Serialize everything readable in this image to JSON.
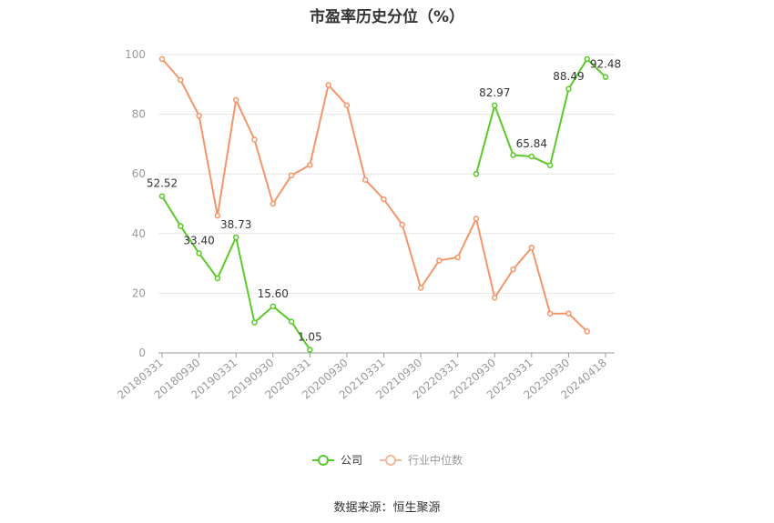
{
  "chart_data": {
    "type": "line",
    "title": "市盈率历史分位（%）",
    "source_note": "数据来源：恒生聚源",
    "ylim": [
      0,
      100
    ],
    "yticks": [
      0,
      20,
      40,
      60,
      80,
      100
    ],
    "grid": true,
    "legend_position": "bottom",
    "x": [
      "20180331",
      "20180630",
      "20180930",
      "20181231",
      "20190331",
      "20190630",
      "20190930",
      "20191231",
      "20200331",
      "20200630",
      "20200930",
      "20201231",
      "20210331",
      "20210630",
      "20210930",
      "20211231",
      "20220331",
      "20220630",
      "20220930",
      "20221231",
      "20230331",
      "20230630",
      "20230930",
      "20231231",
      "20240418"
    ],
    "x_tick_labels": [
      "20180331",
      "20180930",
      "20190331",
      "20190930",
      "20200331",
      "20200930",
      "20210331",
      "20210930",
      "20220331",
      "20220930",
      "20230331",
      "20230930",
      "20240418"
    ],
    "series": [
      {
        "name": "公司",
        "color": "#5ac929",
        "values": [
          52.52,
          42.5,
          33.4,
          25.0,
          38.73,
          10.2,
          15.6,
          10.5,
          1.05,
          null,
          null,
          null,
          null,
          null,
          null,
          null,
          null,
          60.0,
          82.97,
          66.3,
          65.84,
          62.9,
          88.49,
          98.5,
          92.48
        ],
        "labels": {
          "0": "52.52",
          "2": "33.40",
          "4": "38.73",
          "6": "15.60",
          "8": "1.05",
          "18": "82.97",
          "20": "65.84",
          "22": "88.49",
          "24": "92.48"
        }
      },
      {
        "name": "行业中位数",
        "color": "#f4956a",
        "values": [
          98.5,
          91.5,
          79.5,
          46.0,
          84.8,
          71.5,
          50.0,
          59.5,
          63.0,
          89.8,
          83.0,
          58.0,
          51.5,
          43.0,
          21.8,
          31.0,
          32.0,
          45.0,
          18.5,
          28.0,
          35.3,
          13.2,
          13.2,
          7.2,
          null
        ]
      }
    ]
  }
}
